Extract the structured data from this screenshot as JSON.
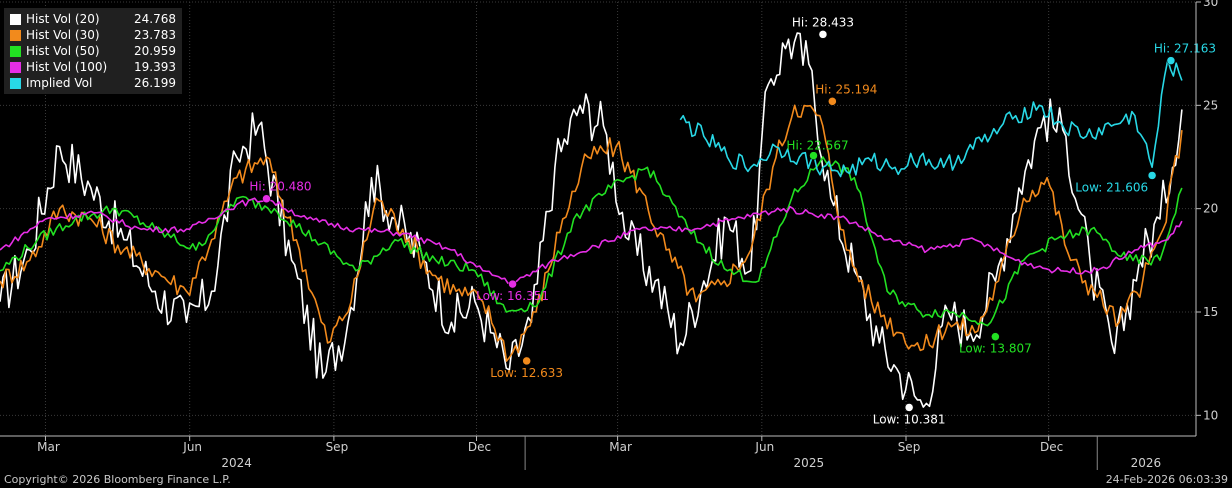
{
  "chart_data": {
    "type": "line",
    "x_ticks": [
      "Mar",
      "Jun",
      "Sep",
      "Dec",
      "Mar",
      "Jun",
      "Sep",
      "Dec"
    ],
    "year_labels": [
      "2024",
      "2025",
      "2026"
    ],
    "y_ticks": [
      "10",
      "15",
      "20",
      "25",
      "30"
    ],
    "ylim": [
      9,
      30
    ],
    "xlim": [
      "2024-02-01",
      "2026-03-05"
    ],
    "grid": true,
    "legend": "top-left",
    "series": [
      {
        "name": "Hist Vol (20)",
        "last": "24.768",
        "color": "#ffffff",
        "x": [
          "2024-02-01",
          "2024-02-20",
          "2024-03-10",
          "2024-03-30",
          "2024-04-20",
          "2024-05-10",
          "2024-05-30",
          "2024-06-15",
          "2024-07-01",
          "2024-07-15",
          "2024-08-05",
          "2024-08-25",
          "2024-09-10",
          "2024-09-25",
          "2024-10-10",
          "2024-10-28",
          "2024-11-15",
          "2024-11-30",
          "2024-12-10",
          "2024-12-22",
          "2025-01-05",
          "2025-01-20",
          "2025-02-05",
          "2025-02-20",
          "2025-03-08",
          "2025-03-25",
          "2025-04-10",
          "2025-04-25",
          "2025-05-10",
          "2025-05-25",
          "2025-06-05",
          "2025-06-18",
          "2025-07-01",
          "2025-07-15",
          "2025-07-30",
          "2025-08-15",
          "2025-08-28",
          "2025-09-12",
          "2025-09-28",
          "2025-10-12",
          "2025-10-28",
          "2025-11-12",
          "2025-11-28",
          "2025-12-12",
          "2025-12-28",
          "2026-01-12",
          "2026-01-28",
          "2026-02-10",
          "2026-02-24"
        ],
        "y": [
          15.5,
          18.0,
          23.0,
          21.0,
          18.5,
          16.0,
          14.5,
          16.0,
          22.5,
          24.0,
          17.5,
          11.8,
          14.5,
          21.5,
          19.5,
          17.5,
          14.5,
          15.5,
          14.0,
          12.2,
          14.5,
          22.0,
          25.0,
          24.0,
          18.5,
          16.5,
          13.5,
          16.5,
          19.5,
          17.0,
          26.0,
          28.2,
          27.0,
          20.5,
          17.0,
          13.5,
          12.0,
          10.4,
          15.0,
          14.0,
          16.5,
          21.0,
          24.5,
          23.5,
          17.0,
          13.0,
          17.5,
          19.5,
          24.8
        ]
      },
      {
        "name": "Hist Vol (30)",
        "last": "23.783",
        "color": "#f28a1c",
        "x": [
          "2024-02-01",
          "2024-02-20",
          "2024-03-10",
          "2024-03-30",
          "2024-04-20",
          "2024-05-10",
          "2024-05-30",
          "2024-06-15",
          "2024-07-01",
          "2024-07-20",
          "2024-08-10",
          "2024-08-28",
          "2024-09-12",
          "2024-09-28",
          "2024-10-15",
          "2024-11-01",
          "2024-11-18",
          "2024-12-05",
          "2024-12-22",
          "2025-01-08",
          "2025-01-25",
          "2025-02-10",
          "2025-02-28",
          "2025-03-15",
          "2025-04-01",
          "2025-04-20",
          "2025-05-08",
          "2025-05-25",
          "2025-06-08",
          "2025-06-22",
          "2025-07-08",
          "2025-07-25",
          "2025-08-10",
          "2025-08-28",
          "2025-09-12",
          "2025-09-28",
          "2025-10-15",
          "2025-10-30",
          "2025-11-15",
          "2025-11-30",
          "2025-12-15",
          "2025-12-30",
          "2026-01-15",
          "2026-01-30",
          "2026-02-12",
          "2026-02-24"
        ],
        "y": [
          16.5,
          17.5,
          20.0,
          19.5,
          18.0,
          17.0,
          16.0,
          18.5,
          21.5,
          22.5,
          18.0,
          13.5,
          15.5,
          20.5,
          19.0,
          17.0,
          16.0,
          15.5,
          12.8,
          15.0,
          19.5,
          22.5,
          23.0,
          21.0,
          18.0,
          15.5,
          16.5,
          18.0,
          22.0,
          25.0,
          24.5,
          18.0,
          15.5,
          14.0,
          13.2,
          14.5,
          14.0,
          16.5,
          20.5,
          21.5,
          17.5,
          16.0,
          14.5,
          16.5,
          19.0,
          23.8
        ]
      },
      {
        "name": "Hist Vol (50)",
        "last": "20.959",
        "color": "#22e022",
        "x": [
          "2024-02-01",
          "2024-02-25",
          "2024-03-20",
          "2024-04-15",
          "2024-05-10",
          "2024-06-05",
          "2024-07-01",
          "2024-07-25",
          "2024-08-20",
          "2024-09-15",
          "2024-10-10",
          "2024-11-05",
          "2024-11-30",
          "2024-12-20",
          "2025-01-10",
          "2025-02-01",
          "2025-02-25",
          "2025-03-20",
          "2025-04-15",
          "2025-05-10",
          "2025-05-30",
          "2025-06-20",
          "2025-07-10",
          "2025-07-30",
          "2025-08-20",
          "2025-09-10",
          "2025-10-01",
          "2025-10-25",
          "2025-11-15",
          "2025-12-05",
          "2025-12-28",
          "2026-01-20",
          "2026-02-10",
          "2026-02-24"
        ],
        "y": [
          17.0,
          18.5,
          19.5,
          20.0,
          19.0,
          18.0,
          20.5,
          20.0,
          18.5,
          17.0,
          18.5,
          17.5,
          17.0,
          15.0,
          15.5,
          19.5,
          21.0,
          22.0,
          19.0,
          17.0,
          16.5,
          20.5,
          22.5,
          21.5,
          16.0,
          15.0,
          15.0,
          14.5,
          17.5,
          18.5,
          19.0,
          17.5,
          17.5,
          21.0
        ]
      },
      {
        "name": "Hist Vol (100)",
        "last": "19.393",
        "color": "#e62ee6",
        "x": [
          "2024-02-01",
          "2024-03-01",
          "2024-04-01",
          "2024-05-01",
          "2024-06-01",
          "2024-07-01",
          "2024-07-20",
          "2024-08-15",
          "2024-09-15",
          "2024-10-15",
          "2024-11-15",
          "2024-12-05",
          "2024-12-25",
          "2025-01-20",
          "2025-02-15",
          "2025-03-15",
          "2025-04-15",
          "2025-05-15",
          "2025-06-15",
          "2025-07-01",
          "2025-07-25",
          "2025-08-20",
          "2025-09-15",
          "2025-10-15",
          "2025-11-10",
          "2025-12-05",
          "2026-01-01",
          "2026-01-25",
          "2026-02-15",
          "2026-02-24"
        ],
        "y": [
          18.0,
          19.5,
          19.8,
          19.0,
          19.0,
          20.2,
          20.5,
          19.5,
          19.0,
          18.8,
          18.0,
          17.0,
          16.4,
          17.5,
          18.2,
          19.0,
          19.0,
          19.5,
          20.0,
          19.8,
          19.5,
          18.5,
          18.0,
          18.5,
          17.5,
          17.0,
          17.0,
          18.0,
          18.5,
          19.4
        ]
      },
      {
        "name": "Implied Vol",
        "last": "26.199",
        "color": "#28d8e6",
        "x": [
          "2025-04-10",
          "2025-04-25",
          "2025-05-10",
          "2025-05-25",
          "2025-06-10",
          "2025-06-25",
          "2025-07-10",
          "2025-07-25",
          "2025-08-10",
          "2025-08-25",
          "2025-09-10",
          "2025-09-25",
          "2025-10-10",
          "2025-10-25",
          "2025-11-10",
          "2025-11-25",
          "2025-12-10",
          "2025-12-25",
          "2026-01-10",
          "2026-01-25",
          "2026-02-05",
          "2026-02-15",
          "2026-02-24"
        ],
        "y": [
          24.3,
          23.5,
          22.5,
          22.0,
          23.0,
          22.5,
          22.0,
          21.8,
          22.3,
          22.0,
          22.5,
          22.0,
          22.8,
          23.5,
          24.5,
          25.0,
          24.0,
          23.5,
          24.0,
          24.5,
          22.0,
          27.2,
          26.2
        ]
      }
    ],
    "annotations": [
      {
        "label": "Hi: 28.433",
        "x": "2025-07-10",
        "y": 28.433,
        "color": "#ffffff",
        "text_color": "#ffffff",
        "anchor": "above"
      },
      {
        "label": "Hi: 25.194",
        "x": "2025-07-16",
        "y": 25.194,
        "color": "#f28a1c",
        "text_color": "#f28a1c",
        "anchor": "left-above"
      },
      {
        "label": "Hi: 22.567",
        "x": "2025-07-04",
        "y": 22.567,
        "color": "#22e022",
        "text_color": "#22e022",
        "anchor": "right-above"
      },
      {
        "label": "Hi: 20.480",
        "x": "2024-07-20",
        "y": 20.48,
        "color": "#e62ee6",
        "text_color": "#e62ee6",
        "anchor": "left-above"
      },
      {
        "label": "Hi: 27.163",
        "x": "2026-02-17",
        "y": 27.163,
        "color": "#28d8e6",
        "text_color": "#28d8e6",
        "anchor": "left-above"
      },
      {
        "label": "Low: 16.351",
        "x": "2024-12-24",
        "y": 16.351,
        "color": "#e62ee6",
        "text_color": "#e62ee6",
        "anchor": "below"
      },
      {
        "label": "Low: 12.633",
        "x": "2025-01-02",
        "y": 12.633,
        "color": "#f28a1c",
        "text_color": "#f28a1c",
        "anchor": "below"
      },
      {
        "label": "Low: 10.381",
        "x": "2025-09-03",
        "y": 10.381,
        "color": "#ffffff",
        "text_color": "#ffffff",
        "anchor": "below"
      },
      {
        "label": "Low: 13.807",
        "x": "2025-10-28",
        "y": 13.807,
        "color": "#22e022",
        "text_color": "#22e022",
        "anchor": "below"
      },
      {
        "label": "Low: 21.606",
        "x": "2026-02-05",
        "y": 21.606,
        "color": "#28d8e6",
        "text_color": "#28d8e6",
        "anchor": "left-below"
      }
    ]
  },
  "footer": {
    "copyright": "Copyright© 2026 Bloomberg Finance L.P.",
    "timestamp": "24-Feb-2026 06:03:39"
  },
  "colors": {
    "background": "#000000",
    "grid": "#3a3a3a",
    "axis_text": "#d0d0d0"
  }
}
